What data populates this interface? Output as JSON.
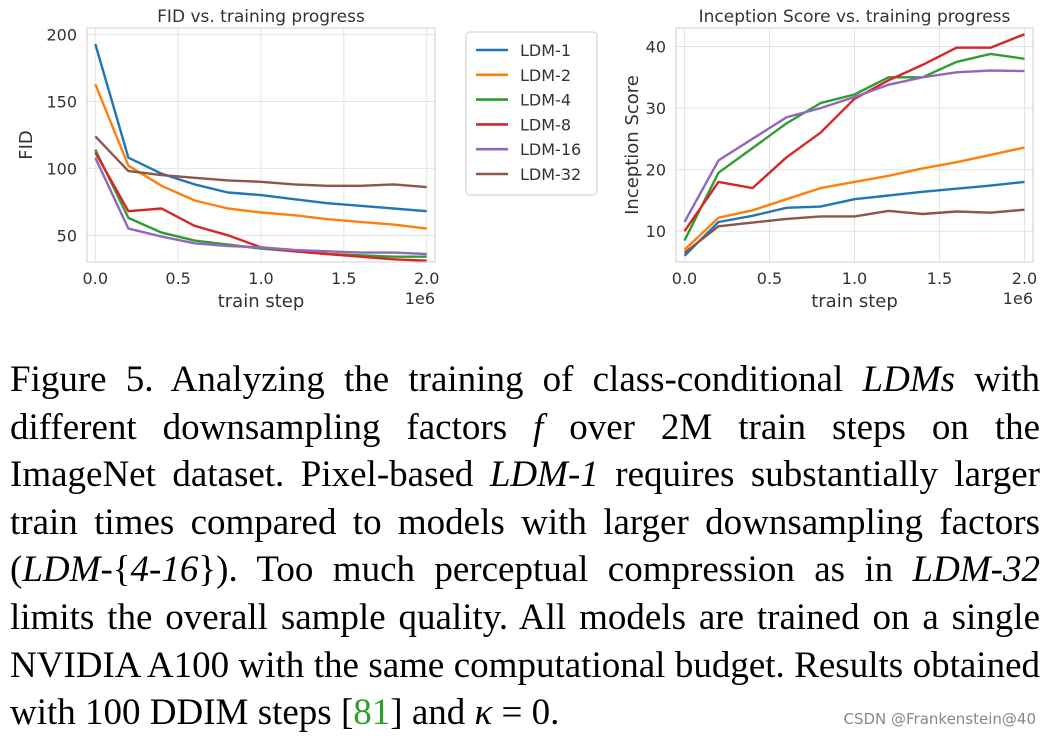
{
  "chart_data": [
    {
      "type": "line",
      "title": "FID vs. training progress",
      "xlabel": "train step",
      "ylabel": "FID",
      "x_offset_label": "1e6",
      "xlim": [
        -0.05,
        2.05
      ],
      "ylim": [
        30,
        205
      ],
      "xticks": [
        0.0,
        0.5,
        1.0,
        1.5,
        2.0
      ],
      "xtick_labels": [
        "0.0",
        "0.5",
        "1.0",
        "1.5",
        "2.0"
      ],
      "yticks": [
        50,
        100,
        150,
        200
      ],
      "ytick_labels": [
        "50",
        "100",
        "150",
        "200"
      ],
      "grid": true,
      "x": [
        0.0,
        0.2,
        0.4,
        0.6,
        0.8,
        1.0,
        1.2,
        1.4,
        1.6,
        1.8,
        2.0
      ],
      "series": [
        {
          "name": "LDM-1",
          "color": "#1f77b4",
          "values": [
            193,
            108,
            96,
            88,
            82,
            80,
            77,
            74,
            72,
            70,
            68
          ]
        },
        {
          "name": "LDM-2",
          "color": "#ff7f0e",
          "values": [
            163,
            102,
            87,
            76,
            70,
            67,
            65,
            62,
            60,
            58,
            55
          ]
        },
        {
          "name": "LDM-4",
          "color": "#2ca02c",
          "values": [
            114,
            63,
            52,
            46,
            43,
            40,
            38,
            36,
            35,
            34,
            34
          ]
        },
        {
          "name": "LDM-8",
          "color": "#d62728",
          "values": [
            112,
            68,
            70,
            57,
            50,
            41,
            38,
            36,
            34,
            32,
            31
          ]
        },
        {
          "name": "LDM-16",
          "color": "#9467bd",
          "values": [
            108,
            55,
            49,
            44,
            42,
            41,
            39,
            38,
            37,
            37,
            36
          ]
        },
        {
          "name": "LDM-32",
          "color": "#8c564b",
          "values": [
            124,
            98,
            95,
            93,
            91,
            90,
            88,
            87,
            87,
            88,
            86
          ]
        }
      ]
    },
    {
      "type": "line",
      "title": "Inception Score vs. training progress",
      "xlabel": "train step",
      "ylabel": "Inception Score",
      "x_offset_label": "1e6",
      "xlim": [
        -0.05,
        2.05
      ],
      "ylim": [
        5,
        43
      ],
      "xticks": [
        0.0,
        0.5,
        1.0,
        1.5,
        2.0
      ],
      "xtick_labels": [
        "0.0",
        "0.5",
        "1.0",
        "1.5",
        "2.0"
      ],
      "yticks": [
        10,
        20,
        30,
        40
      ],
      "ytick_labels": [
        "10",
        "20",
        "30",
        "40"
      ],
      "grid": true,
      "x": [
        0.0,
        0.2,
        0.4,
        0.6,
        0.8,
        1.0,
        1.2,
        1.4,
        1.6,
        1.8,
        2.0
      ],
      "series": [
        {
          "name": "LDM-1",
          "color": "#1f77b4",
          "values": [
            6,
            11.5,
            12.5,
            13.8,
            14,
            15.2,
            15.8,
            16.4,
            16.9,
            17.4,
            18
          ]
        },
        {
          "name": "LDM-2",
          "color": "#ff7f0e",
          "values": [
            7,
            12.2,
            13.4,
            15.2,
            17,
            18,
            19,
            20.2,
            21.2,
            22.4,
            23.6
          ]
        },
        {
          "name": "LDM-4",
          "color": "#2ca02c",
          "values": [
            8.5,
            19.5,
            23.5,
            27.5,
            30.8,
            32.2,
            35,
            35,
            37.5,
            38.8,
            38
          ]
        },
        {
          "name": "LDM-8",
          "color": "#d62728",
          "values": [
            10,
            18,
            17,
            22,
            26,
            31.5,
            34.5,
            37,
            39.8,
            39.8,
            42
          ]
        },
        {
          "name": "LDM-16",
          "color": "#9467bd",
          "values": [
            11.5,
            21.5,
            25,
            28.5,
            30,
            31.8,
            33.8,
            35,
            35.8,
            36.1,
            36
          ]
        },
        {
          "name": "LDM-32",
          "color": "#8c564b",
          "values": [
            6.5,
            10.8,
            11.4,
            12,
            12.4,
            12.4,
            13.3,
            12.8,
            13.2,
            13,
            13.5
          ]
        }
      ]
    }
  ],
  "caption": {
    "segments": [
      {
        "text": "Figure 5. Analyzing the training of class-conditional ",
        "style": "plain"
      },
      {
        "text": "LDMs",
        "style": "italic"
      },
      {
        "text": " with different downsampling factors ",
        "style": "plain"
      },
      {
        "text": "f",
        "style": "italic"
      },
      {
        "text": " over 2M train steps on the ImageNet dataset. Pixel-based ",
        "style": "plain"
      },
      {
        "text": "LDM-1",
        "style": "italic"
      },
      {
        "text": " requires substantially larger train times compared to models with larger downsampling factors (",
        "style": "plain"
      },
      {
        "text": "LDM-",
        "style": "italic"
      },
      {
        "text": "{",
        "style": "plain"
      },
      {
        "text": "4-16",
        "style": "italic"
      },
      {
        "text": "}). Too much perceptual compression as in ",
        "style": "plain"
      },
      {
        "text": "LDM-32",
        "style": "italic"
      },
      {
        "text": " limits the overall sample quality. All models are trained on a single NVIDIA A100 with the same computational budget. Results obtained with 100 DDIM steps [",
        "style": "plain"
      },
      {
        "text": "81",
        "style": "cite"
      },
      {
        "text": "] and ",
        "style": "plain"
      },
      {
        "text": "κ",
        "style": "italic"
      },
      {
        "text": " = 0.",
        "style": "plain"
      }
    ]
  },
  "watermark": "CSDN @Frankenstein@40"
}
